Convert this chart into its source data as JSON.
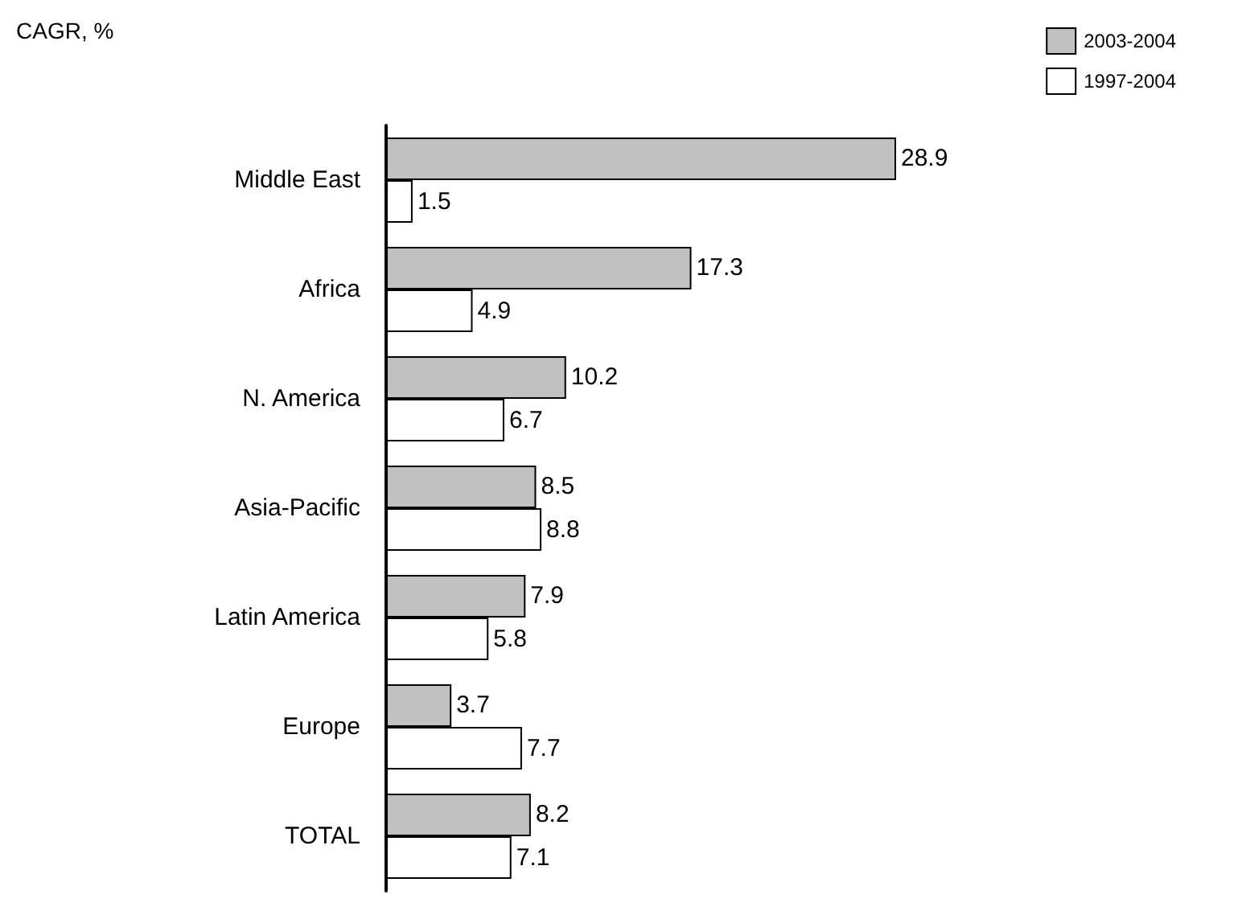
{
  "chart_data": {
    "type": "bar",
    "orientation": "horizontal",
    "annotations": [
      "CAGR, %"
    ],
    "categories": [
      "Middle East",
      "Africa",
      "N. America",
      "Asia-Pacific",
      "Latin America",
      "Europe",
      "TOTAL"
    ],
    "series": [
      {
        "name": "2003-2004",
        "color": "#c0c0c0",
        "values": [
          28.9,
          17.3,
          10.2,
          8.5,
          7.9,
          3.7,
          8.2
        ]
      },
      {
        "name": "1997-2004",
        "color": "#ffffff",
        "values": [
          1.5,
          4.9,
          6.7,
          8.8,
          5.8,
          7.7,
          7.1
        ]
      }
    ],
    "data_labels": true,
    "legend": "top right"
  }
}
